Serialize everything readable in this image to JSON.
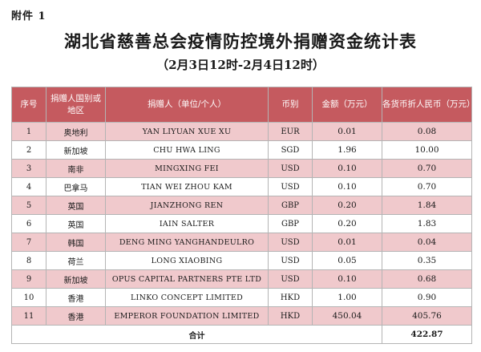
{
  "attachment": "附件 1",
  "title": "湖北省慈善总会疫情防控境外捐赠资金统计表",
  "subtitle": "（2月3日12时-2月4日12时）",
  "headers": {
    "seq": "序号",
    "country": "捐赠人国别或地区",
    "donor": "捐赠人（单位/个人）",
    "currency": "币别",
    "amount": "金额（万元）",
    "rmb": "各货币折人民币（万元）"
  },
  "rows": [
    {
      "seq": "1",
      "country": "奥地利",
      "donor": "YAN LIYUAN XUE XU",
      "currency": "EUR",
      "amount": "0.01",
      "rmb": "0.08"
    },
    {
      "seq": "2",
      "country": "新加坡",
      "donor": "CHU HWA LING",
      "currency": "SGD",
      "amount": "1.96",
      "rmb": "10.00"
    },
    {
      "seq": "3",
      "country": "南非",
      "donor": "MINGXING FEI",
      "currency": "USD",
      "amount": "0.10",
      "rmb": "0.70"
    },
    {
      "seq": "4",
      "country": "巴拿马",
      "donor": "TIAN WEI ZHOU KAM",
      "currency": "USD",
      "amount": "0.10",
      "rmb": "0.70"
    },
    {
      "seq": "5",
      "country": "英国",
      "donor": "JIANZHONG REN",
      "currency": "GBP",
      "amount": "0.20",
      "rmb": "1.84"
    },
    {
      "seq": "6",
      "country": "英国",
      "donor": "IAIN SALTER",
      "currency": "GBP",
      "amount": "0.20",
      "rmb": "1.83"
    },
    {
      "seq": "7",
      "country": "韩国",
      "donor": "DENG MING YANGHANDEULRO",
      "currency": "USD",
      "amount": "0.01",
      "rmb": "0.04"
    },
    {
      "seq": "8",
      "country": "荷兰",
      "donor": "LONG XIAOBING",
      "currency": "USD",
      "amount": "0.05",
      "rmb": "0.35"
    },
    {
      "seq": "9",
      "country": "新加坡",
      "donor": "OPUS CAPITAL PARTNERS PTE LTD",
      "currency": "USD",
      "amount": "0.10",
      "rmb": "0.68"
    },
    {
      "seq": "10",
      "country": "香港",
      "donor": "LINKO CONCEPT LIMITED",
      "currency": "HKD",
      "amount": "1.00",
      "rmb": "0.90"
    },
    {
      "seq": "11",
      "country": "香港",
      "donor": "EMPEROR FOUNDATION LIMITED",
      "currency": "HKD",
      "amount": "450.04",
      "rmb": "405.76"
    }
  ],
  "total": {
    "label": "合计",
    "rmb": "422.87"
  }
}
